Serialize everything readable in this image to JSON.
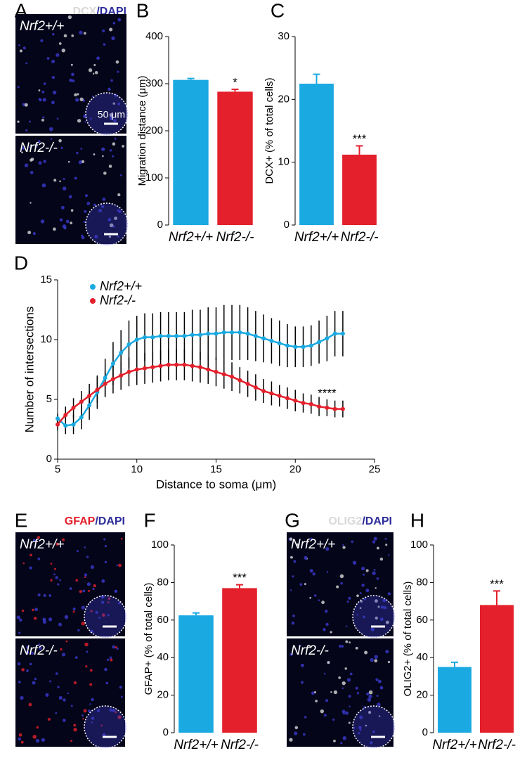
{
  "chart_data": [
    {
      "type": "bar",
      "panel": "B",
      "ylabel": "Migration distance (μm)",
      "categories": [
        "Nrf2+/+",
        "Nrf2-/-"
      ],
      "values": [
        308,
        283
      ],
      "errors": [
        3,
        5
      ],
      "significance": [
        null,
        "*"
      ],
      "colors": [
        "#1ba9e1",
        "#e3202b"
      ],
      "ylim": [
        0,
        400
      ],
      "yticks": [
        0,
        100,
        200,
        300,
        400
      ]
    },
    {
      "type": "bar",
      "panel": "C",
      "ylabel": "DCX+ (% of total cells)",
      "categories": [
        "Nrf2+/+",
        "Nrf2-/-"
      ],
      "values": [
        22.5,
        11.2
      ],
      "errors": [
        1.5,
        1.4
      ],
      "significance": [
        null,
        "***"
      ],
      "colors": [
        "#1ba9e1",
        "#e3202b"
      ],
      "ylim": [
        0,
        30
      ],
      "yticks": [
        0,
        10,
        20,
        30
      ]
    },
    {
      "type": "line",
      "panel": "D",
      "xlabel": "Distance to soma (μm)",
      "ylabel": "Number of intersections",
      "x": [
        5,
        5.5,
        6,
        6.5,
        7,
        7.5,
        8,
        8.5,
        9,
        9.5,
        10,
        10.5,
        11,
        11.5,
        12,
        12.5,
        13,
        13.5,
        14,
        14.5,
        15,
        15.5,
        16,
        16.5,
        17,
        17.5,
        18,
        18.5,
        19,
        19.5,
        20,
        20.5,
        21,
        21.5,
        22,
        22.5,
        23
      ],
      "series": [
        {
          "name": "Nrf2+/+",
          "color": "#1ba9e1",
          "values": [
            3.4,
            2.8,
            2.9,
            3.5,
            4.5,
            5.6,
            6.8,
            8.0,
            8.9,
            9.6,
            10.0,
            10.2,
            10.2,
            10.3,
            10.3,
            10.3,
            10.3,
            10.4,
            10.4,
            10.5,
            10.5,
            10.6,
            10.6,
            10.6,
            10.5,
            10.3,
            10.1,
            9.9,
            9.7,
            9.5,
            9.4,
            9.4,
            9.5,
            9.8,
            10.1,
            10.5,
            10.5
          ],
          "errors": [
            0.4,
            0.7,
            0.8,
            1.0,
            1.2,
            1.4,
            1.6,
            1.8,
            1.9,
            2.0,
            2.0,
            2.0,
            2.0,
            2.0,
            2.0,
            2.0,
            2.0,
            2.1,
            2.1,
            2.2,
            2.2,
            2.3,
            2.3,
            2.3,
            2.2,
            2.1,
            2.0,
            1.9,
            1.9,
            1.8,
            1.7,
            1.7,
            1.7,
            1.8,
            1.9,
            1.9,
            1.9
          ]
        },
        {
          "name": "Nrf2-/-",
          "color": "#e3202b",
          "values": [
            2.9,
            3.7,
            4.3,
            4.8,
            5.3,
            5.8,
            6.3,
            6.7,
            7.0,
            7.3,
            7.5,
            7.6,
            7.7,
            7.8,
            7.9,
            7.9,
            7.9,
            7.8,
            7.7,
            7.5,
            7.3,
            7.1,
            6.9,
            6.6,
            6.3,
            6.0,
            5.7,
            5.5,
            5.3,
            5.1,
            4.9,
            4.7,
            4.6,
            4.4,
            4.3,
            4.2,
            4.2
          ],
          "errors": [
            0.5,
            0.7,
            0.8,
            0.9,
            1.0,
            1.1,
            1.1,
            1.2,
            1.2,
            1.2,
            1.3,
            1.3,
            1.3,
            1.3,
            1.3,
            1.3,
            1.3,
            1.3,
            1.3,
            1.2,
            1.2,
            1.2,
            1.2,
            1.1,
            1.1,
            1.1,
            1.0,
            1.0,
            0.9,
            0.9,
            0.9,
            0.8,
            0.8,
            0.8,
            0.7,
            0.7,
            0.7
          ]
        }
      ],
      "annotation": "****",
      "legend": "upper left",
      "xlim": [
        5,
        25
      ],
      "xticks": [
        5,
        10,
        15,
        20,
        25
      ],
      "ylim": [
        0,
        15
      ],
      "yticks": [
        0,
        5,
        10,
        15
      ]
    },
    {
      "type": "bar",
      "panel": "F",
      "ylabel": "GFAP+ (% of total cells)",
      "categories": [
        "Nrf2+/+",
        "Nrf2-/-"
      ],
      "values": [
        62.5,
        77
      ],
      "errors": [
        1.3,
        1.8
      ],
      "significance": [
        null,
        "***"
      ],
      "colors": [
        "#1ba9e1",
        "#e3202b"
      ],
      "ylim": [
        0,
        100
      ],
      "yticks": [
        0,
        20,
        40,
        60,
        80,
        100
      ]
    },
    {
      "type": "bar",
      "panel": "H",
      "ylabel": "OLIG2+ (% of total cells)",
      "categories": [
        "Nrf2+/+",
        "Nrf2-/-"
      ],
      "values": [
        35,
        68
      ],
      "errors": [
        2.5,
        7.5
      ],
      "significance": [
        null,
        "***"
      ],
      "colors": [
        "#1ba9e1",
        "#e3202b"
      ],
      "ylim": [
        0,
        100
      ],
      "yticks": [
        0,
        20,
        40,
        60,
        80,
        100
      ]
    }
  ],
  "images": [
    {
      "panel": "A",
      "stain": [
        "DCX",
        "/DAPI"
      ],
      "stain_colors": [
        "#d8d8d8",
        "#2b2b9a"
      ],
      "genotypes": [
        "Nrf2+/+",
        "Nrf2-/-"
      ],
      "scale_bar": "50 μm"
    },
    {
      "panel": "E",
      "stain": [
        "GFAP",
        "/DAPI"
      ],
      "stain_colors": [
        "#e3202b",
        "#2b2b9a"
      ],
      "genotypes": [
        "Nrf2+/+",
        "Nrf2-/-"
      ]
    },
    {
      "panel": "G",
      "stain": [
        "OLIG2",
        "/DAPI"
      ],
      "stain_colors": [
        "#d8d8d8",
        "#2b2b9a"
      ],
      "genotypes": [
        "Nrf2+/+",
        "Nrf2-/-"
      ]
    }
  ]
}
